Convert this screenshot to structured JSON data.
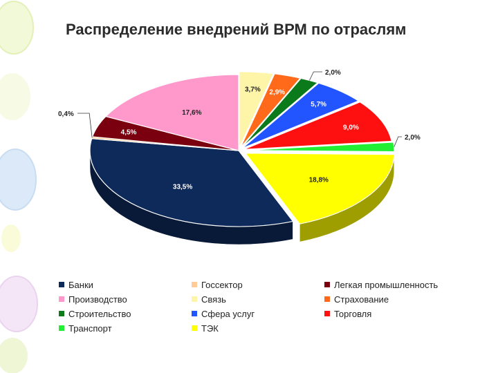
{
  "title": "Распределение внедрений ВРМ по отраслям",
  "chart_data": {
    "type": "pie",
    "title": "Распределение внедрений ВРМ по отраслям",
    "legend_position": "bottom",
    "three_d": true,
    "slices": [
      {
        "name": "Связь",
        "value": 3.7,
        "label": "3,7%",
        "color": "#fff5a8"
      },
      {
        "name": "Страхование",
        "value": 2.9,
        "label": "2,9%",
        "color": "#ff6a1a"
      },
      {
        "name": "Строительство",
        "value": 2.0,
        "label": "2,0%",
        "color": "#0a7a1a"
      },
      {
        "name": "Сфера услуг",
        "value": 5.7,
        "label": "5,7%",
        "color": "#2255ff"
      },
      {
        "name": "Торговля",
        "value": 9.0,
        "label": "9,0%",
        "color": "#ff1010"
      },
      {
        "name": "Транспорт",
        "value": 2.0,
        "label": "2,0%",
        "color": "#22ee33"
      },
      {
        "name": "ТЭК",
        "value": 18.8,
        "label": "18,8%",
        "color": "#ffff00"
      },
      {
        "name": "Банки",
        "value": 33.5,
        "label": "33,5%",
        "color": "#0e2a5a"
      },
      {
        "name": "Госсектор",
        "value": 0.4,
        "label": "0,4%",
        "color": "#ffcc99"
      },
      {
        "name": "Легкая промышленность",
        "value": 4.5,
        "label": "4,5%",
        "color": "#7a0010"
      },
      {
        "name": "Производство",
        "value": 17.6,
        "label": "17,6%",
        "color": "#ff99cc"
      }
    ],
    "legend": [
      {
        "name": "Банки",
        "color": "#0e2a5a"
      },
      {
        "name": "Госсектор",
        "color": "#ffcc99"
      },
      {
        "name": "Легкая промышленность",
        "color": "#7a0010"
      },
      {
        "name": "Производство",
        "color": "#ff99cc"
      },
      {
        "name": "Связь",
        "color": "#fff5a8"
      },
      {
        "name": "Страхование",
        "color": "#ff6a1a"
      },
      {
        "name": "Строительство",
        "color": "#0a7a1a"
      },
      {
        "name": "Сфера услуг",
        "color": "#2255ff"
      },
      {
        "name": "Торговля",
        "color": "#ff1010"
      },
      {
        "name": "Транспорт",
        "color": "#22ee33"
      },
      {
        "name": "ТЭК",
        "color": "#ffff00"
      }
    ]
  }
}
